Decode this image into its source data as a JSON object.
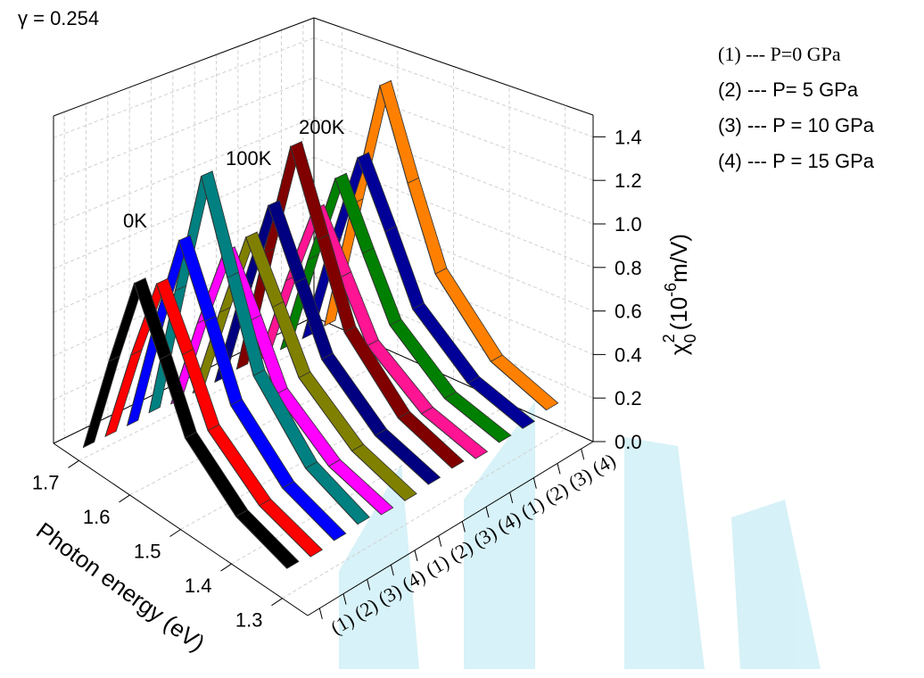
{
  "chart_data": {
    "type": "waterfall3d",
    "title": "γ = 0.254",
    "xlabel": "Photon energy (eV)",
    "zlabel": {
      "symbol": "χ",
      "sub": "0",
      "sup": "2",
      "unit": "(10",
      "exp": "-6",
      "unit_end": "m/V)"
    },
    "x": [
      1.3,
      1.4,
      1.5,
      1.55,
      1.6,
      1.65,
      1.7
    ],
    "xlim": [
      1.25,
      1.75
    ],
    "xticks": [
      1.3,
      1.4,
      1.5,
      1.6,
      1.7
    ],
    "zlim": [
      0,
      1.5
    ],
    "zticks": [
      {
        "value": 0,
        "label": "0.0"
      },
      0.2,
      0.4,
      0.6,
      0.8,
      {
        "value": 1,
        "label": "1.0"
      },
      1.2,
      1.4
    ],
    "categories": [
      "(1)",
      "(2)",
      "(3)",
      "(4)",
      "(1)",
      "(2)",
      "(3)",
      "(4)",
      "(1)",
      "(2)",
      "(3)",
      "(4)"
    ],
    "legend": [
      "(1) --- P=0 GPa",
      "(2) --- P= 5 GPa",
      "(3) --- P = 10 GPa",
      "(4) --- P = 15 GPa"
    ],
    "grid": true,
    "groups": [
      {
        "label": "0K",
        "series": [
          {
            "color": "#000000",
            "values": [
              0.12,
              0.2,
              0.4,
              0.68,
              0.95,
              0.52,
              0.05
            ]
          },
          {
            "color": "#ff0000",
            "values": [
              0.11,
              0.19,
              0.38,
              0.65,
              0.9,
              0.5,
              0.05
            ]
          },
          {
            "color": "#0000ff",
            "values": [
              0.12,
              0.21,
              0.44,
              0.75,
              1.05,
              0.58,
              0.05
            ]
          },
          {
            "color": "#008080",
            "values": [
              0.13,
              0.24,
              0.52,
              0.9,
              1.3,
              0.7,
              0.06
            ]
          }
        ]
      },
      {
        "label": "100K",
        "series": [
          {
            "color": "#ff00ff",
            "values": [
              0.11,
              0.19,
              0.38,
              0.65,
              0.9,
              0.5,
              0.05
            ]
          },
          {
            "color": "#808000",
            "values": [
              0.11,
              0.2,
              0.4,
              0.66,
              0.92,
              0.5,
              0.05
            ]
          },
          {
            "color": "#000080",
            "values": [
              0.12,
              0.21,
              0.43,
              0.72,
              1.02,
              0.56,
              0.05
            ]
          },
          {
            "color": "#800000",
            "values": [
              0.13,
              0.23,
              0.5,
              0.87,
              1.25,
              0.68,
              0.06
            ]
          }
        ]
      },
      {
        "label": "200K",
        "series": [
          {
            "color": "#ff1493",
            "values": [
              0.11,
              0.19,
              0.38,
              0.64,
              0.9,
              0.5,
              0.05
            ]
          },
          {
            "color": "#008000",
            "values": [
              0.12,
              0.2,
              0.42,
              0.7,
              1.0,
              0.55,
              0.05
            ]
          },
          {
            "color": "#000099",
            "values": [
              0.12,
              0.21,
              0.44,
              0.75,
              1.05,
              0.58,
              0.05
            ]
          },
          {
            "color": "#ff8000",
            "values": [
              0.14,
              0.25,
              0.55,
              0.93,
              1.35,
              0.72,
              0.06
            ]
          }
        ]
      }
    ]
  }
}
